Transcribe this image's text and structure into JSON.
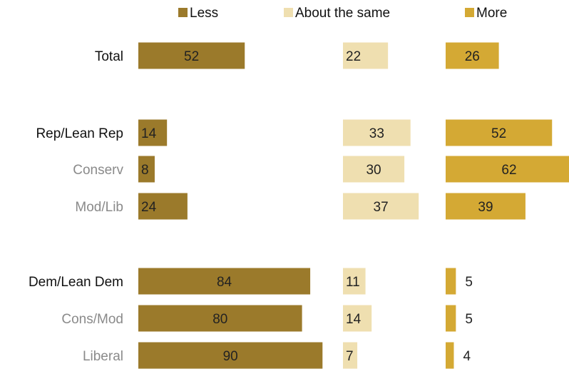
{
  "chart_data": {
    "type": "bar",
    "orientation": "horizontal",
    "layout": "small-multiples",
    "legend_position": "top",
    "categories": [
      "Total",
      "Rep/Lean Rep",
      "Conserv",
      "Mod/Lib",
      "Dem/Lean Dem",
      "Cons/Mod",
      "Liberal"
    ],
    "category_style": [
      "primary",
      "primary",
      "secondary",
      "secondary",
      "primary",
      "secondary",
      "secondary"
    ],
    "series": [
      {
        "name": "Less",
        "color": "#9b7a2b",
        "values": [
          52,
          14,
          8,
          24,
          84,
          80,
          90
        ]
      },
      {
        "name": "About the same",
        "color": "#efdfb0",
        "values": [
          22,
          33,
          30,
          37,
          11,
          14,
          7
        ]
      },
      {
        "name": "More",
        "color": "#d4a934",
        "values": [
          26,
          52,
          62,
          39,
          5,
          5,
          4
        ]
      }
    ],
    "colors": {
      "primary_label": "#111111",
      "secondary_label": "#8a8a8a",
      "value_text": "#222222"
    }
  }
}
